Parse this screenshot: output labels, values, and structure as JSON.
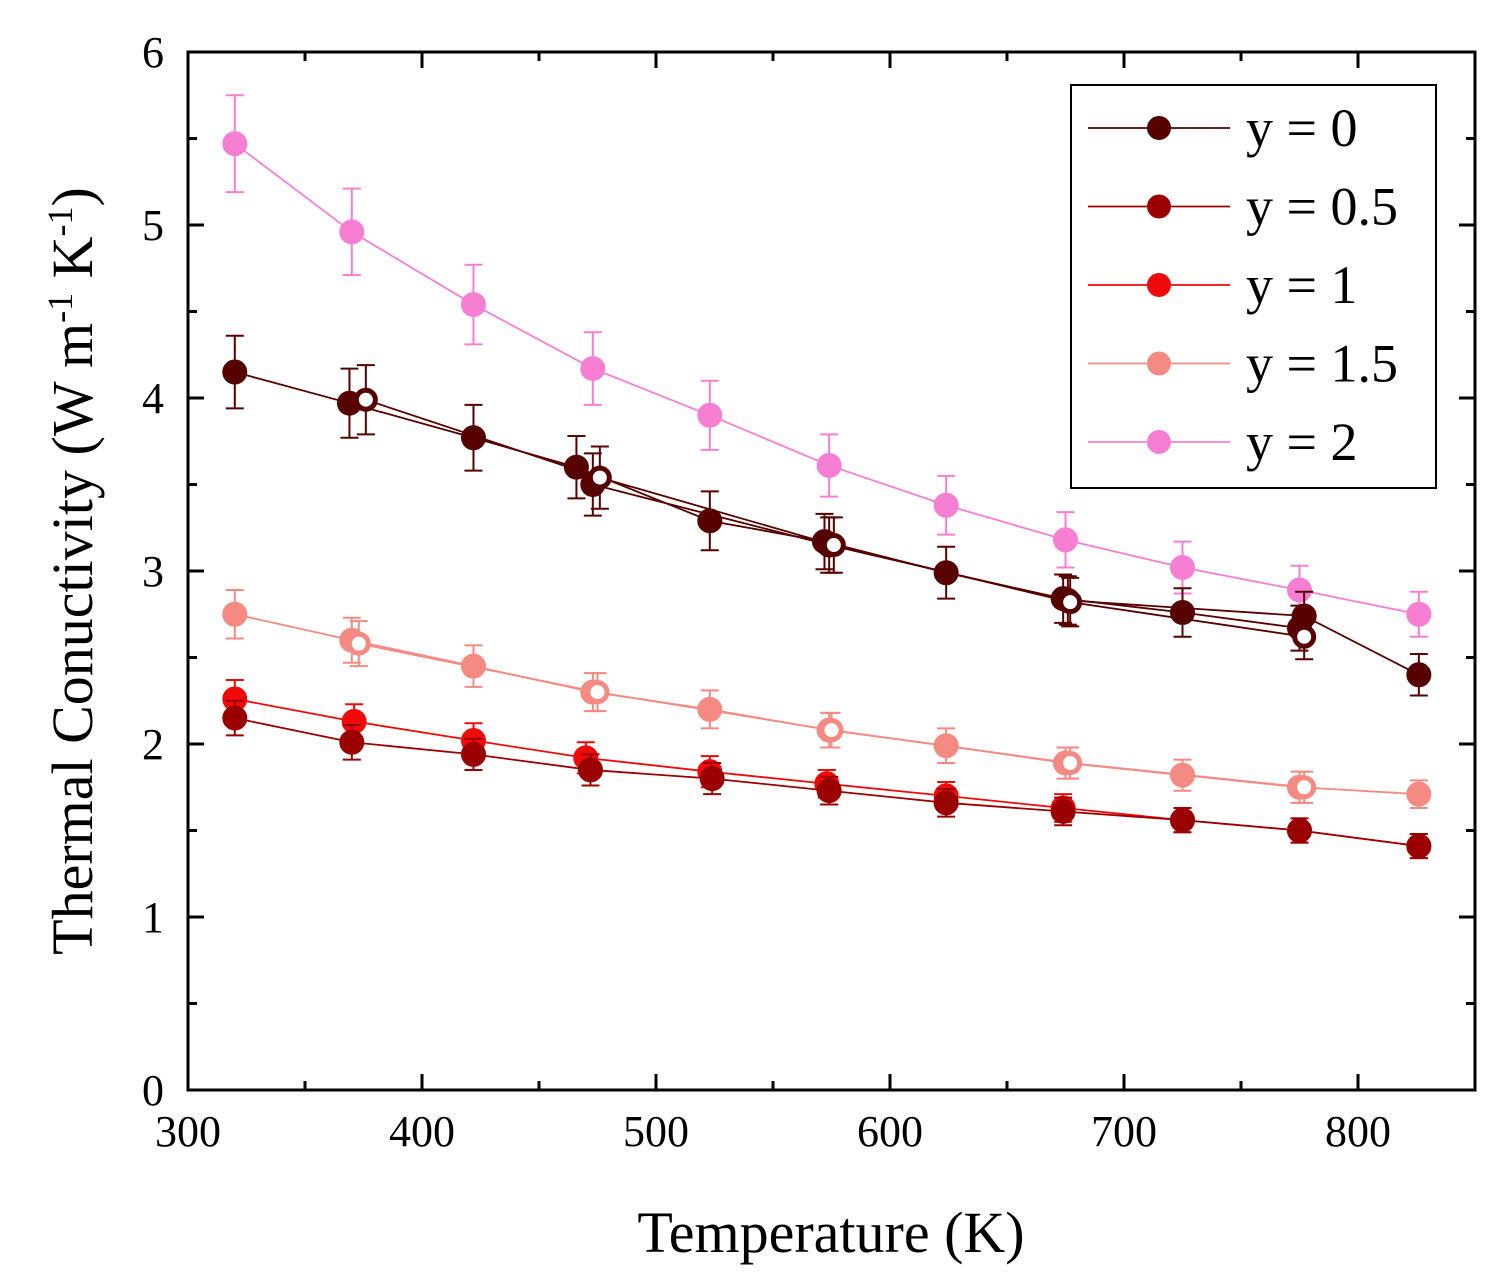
{
  "chart_data": {
    "type": "line",
    "title": "",
    "xlabel": "Temperature (K)",
    "ylabel_parts": [
      "Thermal Conuctivity (W m",
      "-1",
      " K",
      "-1",
      ")"
    ],
    "xlim": [
      300,
      850
    ],
    "ylim": [
      0,
      6
    ],
    "x_ticks": [
      300,
      400,
      500,
      600,
      700,
      800
    ],
    "x_tick_labels": [
      "300",
      "400",
      "500",
      "600",
      "700",
      "800"
    ],
    "y_ticks": [
      0,
      1,
      2,
      3,
      4,
      5,
      6
    ],
    "y_tick_labels": [
      "0",
      "1",
      "2",
      "3",
      "4",
      "5",
      "6"
    ],
    "legend_position": "top-right",
    "series": [
      {
        "name": "y = 2",
        "color": "#f77fd3",
        "runs": [
          {
            "filled": true,
            "x": [
              320,
              370,
              422,
              473,
              523,
              574,
              624,
              675,
              725,
              775,
              826
            ],
            "y": [
              5.47,
              4.96,
              4.54,
              4.17,
              3.9,
              3.61,
              3.38,
              3.18,
              3.02,
              2.89,
              2.75
            ],
            "err": [
              0.28,
              0.25,
              0.23,
              0.21,
              0.2,
              0.18,
              0.17,
              0.16,
              0.15,
              0.14,
              0.13
            ]
          }
        ]
      },
      {
        "name": "y = 1.5",
        "color": "#f48a82",
        "runs": [
          {
            "filled": true,
            "x": [
              320,
              370,
              422,
              473,
              523,
              574,
              624,
              675,
              725,
              775,
              826
            ],
            "y": [
              2.75,
              2.6,
              2.45,
              2.3,
              2.2,
              2.08,
              1.99,
              1.89,
              1.82,
              1.75,
              1.71
            ],
            "err": [
              0.14,
              0.13,
              0.12,
              0.11,
              0.11,
              0.1,
              0.1,
              0.09,
              0.09,
              0.09,
              0.08
            ]
          },
          {
            "filled": false,
            "x": [
              373,
              475,
              575,
              677,
              777
            ],
            "y": [
              2.58,
              2.3,
              2.08,
              1.89,
              1.75
            ],
            "err": [
              0.13,
              0.11,
              0.1,
              0.09,
              0.09
            ]
          }
        ]
      },
      {
        "name": "y = 1",
        "color": "#f00a0a",
        "runs": [
          {
            "filled": true,
            "x": [
              320,
              371,
              422,
              470,
              523,
              573,
              624,
              674,
              725,
              775,
              826
            ],
            "y": [
              2.26,
              2.13,
              2.02,
              1.92,
              1.84,
              1.77,
              1.7,
              1.63,
              1.56,
              1.5,
              1.41
            ],
            "err": [
              0.11,
              0.1,
              0.1,
              0.09,
              0.09,
              0.08,
              0.08,
              0.08,
              0.07,
              0.07,
              0.07
            ]
          }
        ]
      },
      {
        "name": "y = 0.5",
        "color": "#9b0000",
        "runs": [
          {
            "filled": true,
            "x": [
              320,
              370,
              422,
              472,
              524,
              574,
              624,
              674,
              725,
              775,
              826
            ],
            "y": [
              2.15,
              2.01,
              1.94,
              1.85,
              1.8,
              1.73,
              1.66,
              1.61,
              1.56,
              1.5,
              1.41
            ],
            "err": [
              0.1,
              0.1,
              0.09,
              0.09,
              0.09,
              0.08,
              0.08,
              0.08,
              0.07,
              0.07,
              0.07
            ]
          }
        ]
      },
      {
        "name": "y = 0",
        "color": "#560000",
        "runs": [
          {
            "filled": true,
            "x": [
              320,
              369,
              422,
              466,
              523,
              572,
              624,
              674,
              725,
              775
            ],
            "y": [
              4.15,
              3.97,
              3.77,
              3.6,
              3.29,
              3.17,
              2.99,
              2.84,
              2.76,
              2.67
            ],
            "err": [
              0.21,
              0.2,
              0.19,
              0.18,
              0.17,
              0.16,
              0.15,
              0.14,
              0.14,
              0.13
            ]
          },
          {
            "filled": true,
            "x": [
              473,
              574,
              676,
              777,
              826
            ],
            "y": [
              3.5,
              3.15,
              2.83,
              2.74,
              2.4
            ],
            "err": [
              0.18,
              0.16,
              0.14,
              0.14,
              0.12
            ]
          },
          {
            "filled": false,
            "x": [
              376,
              476,
              576,
              677,
              777
            ],
            "y": [
              3.99,
              3.54,
              3.15,
              2.82,
              2.62
            ],
            "err": [
              0.2,
              0.18,
              0.16,
              0.14,
              0.13
            ]
          }
        ]
      }
    ],
    "legend": [
      {
        "label": "y = 0",
        "color": "#560000"
      },
      {
        "label": "y = 0.5",
        "color": "#9b0000"
      },
      {
        "label": "y = 1",
        "color": "#f00a0a"
      },
      {
        "label": "y = 1.5",
        "color": "#f48a82"
      },
      {
        "label": "y = 2",
        "color": "#f77fd3"
      }
    ]
  }
}
